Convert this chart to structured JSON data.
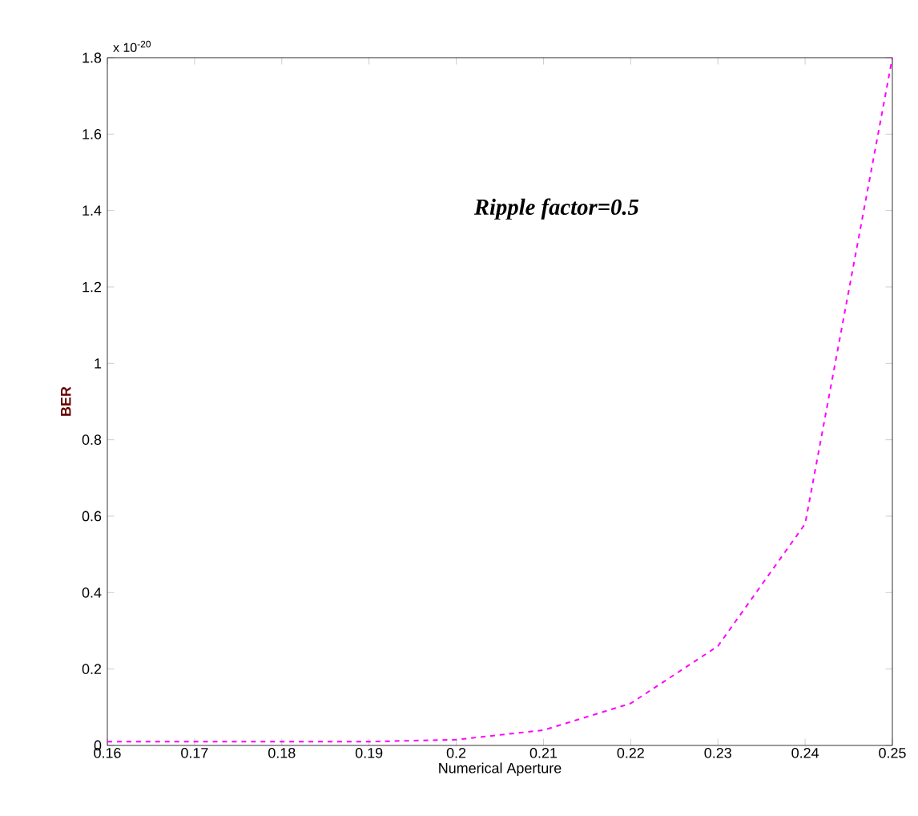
{
  "chart_data": {
    "type": "line",
    "xlabel": "Numerical Aperture",
    "ylabel": "BER",
    "x": [
      0.16,
      0.17,
      0.18,
      0.19,
      0.2,
      0.21,
      0.22,
      0.23,
      0.24,
      0.25
    ],
    "series": [
      {
        "color": "#ff00ff",
        "values": [
          0.01,
          0.01,
          0.01,
          0.01,
          0.015,
          0.04,
          0.11,
          0.26,
          0.58,
          1.8
        ]
      }
    ],
    "line_style": "dashed",
    "marker": "none",
    "xlim": [
      0.16,
      0.25
    ],
    "ylim": [
      0,
      1.8
    ],
    "xticks": [
      0.16,
      0.17,
      0.18,
      0.19,
      0.2,
      0.21,
      0.22,
      0.23,
      0.24,
      0.25
    ],
    "yticks": [
      0,
      0.2,
      0.4,
      0.6,
      0.8,
      1,
      1.2,
      1.4,
      1.6,
      1.8
    ],
    "annotations": [
      "x 10$^{-20}$",
      "Ripple factor=0.5"
    ],
    "grid": false
  }
}
